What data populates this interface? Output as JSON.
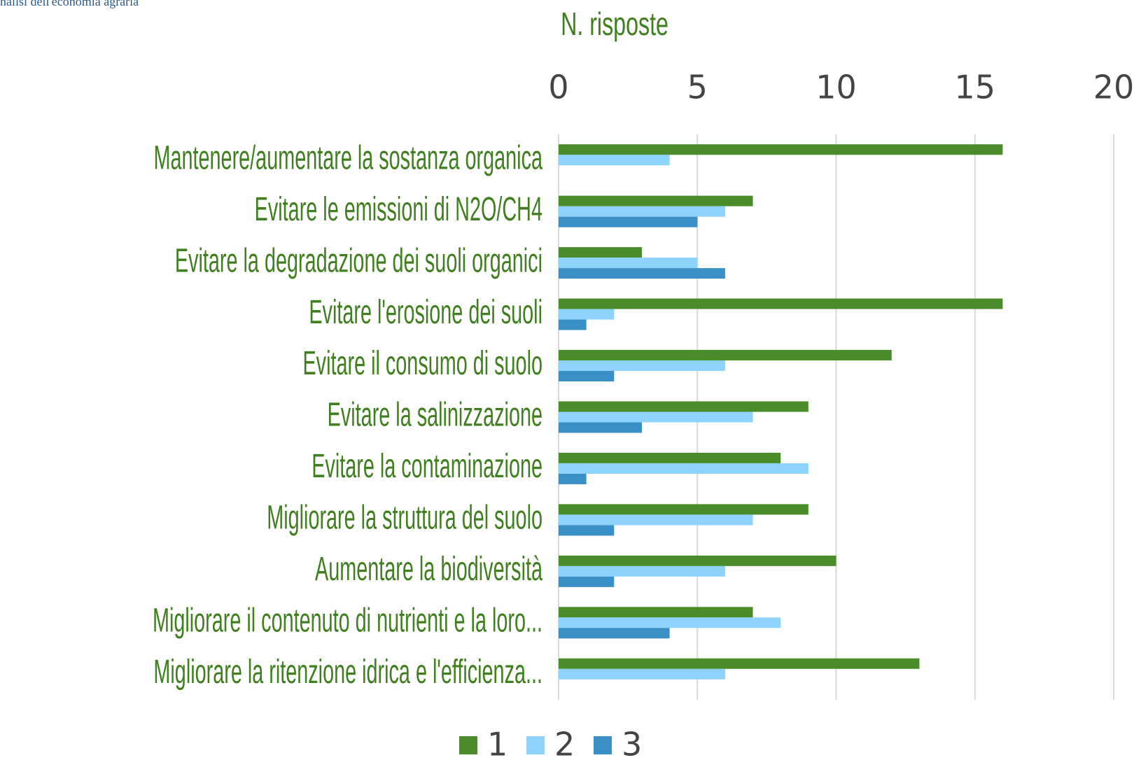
{
  "logo_text": "nalisi dell'economia agraria",
  "chart_data": {
    "type": "barh",
    "x_label": "N. risposte",
    "categories": [
      "Mantenere/aumentare la sostanza organica",
      "Evitare le emissioni di N2O/CH4",
      "Evitare la degradazione dei suoli organici",
      "Evitare l'erosione dei suoli",
      "Evitare il consumo di suolo",
      "Evitare la salinizzazione",
      "Evitare la contaminazione",
      "Migliorare la struttura del suolo",
      "Aumentare la biodiversità",
      "Migliorare il contenuto di nutrienti e la loro...",
      "Migliorare la ritenzione idrica e l'efficienza..."
    ],
    "series": [
      {
        "name": "1",
        "color": "#4a8c2a",
        "values": [
          16,
          7,
          3,
          16,
          12,
          9,
          8,
          9,
          10,
          7,
          13
        ]
      },
      {
        "name": "2",
        "color": "#8dd3fb",
        "values": [
          4,
          6,
          5,
          2,
          6,
          7,
          9,
          7,
          6,
          8,
          6
        ]
      },
      {
        "name": "3",
        "color": "#3a8fc6",
        "values": [
          0,
          5,
          6,
          1,
          2,
          3,
          1,
          2,
          2,
          4,
          0
        ]
      }
    ],
    "xlim": [
      0,
      20
    ],
    "xticks": [
      0,
      5,
      10,
      15,
      20
    ],
    "grid": true,
    "legend": "bottom"
  }
}
